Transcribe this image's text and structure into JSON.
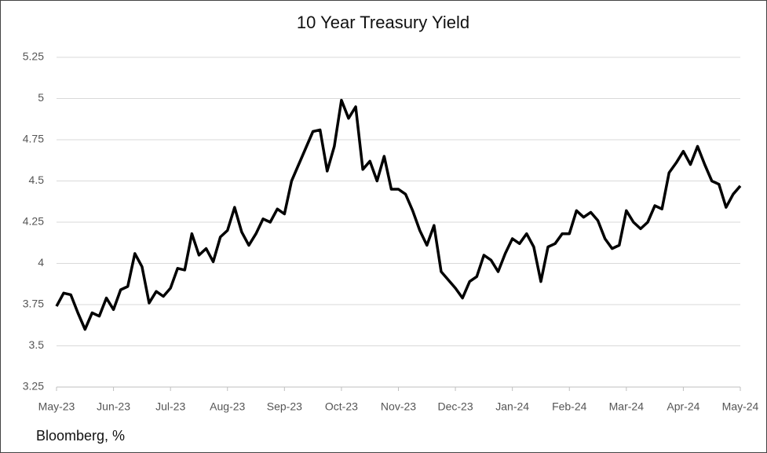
{
  "chart_data": {
    "type": "line",
    "title": "10 Year Treasury Yield",
    "source": "Bloomberg, %",
    "categories": [
      "May-23",
      null,
      null,
      null,
      null,
      null,
      null,
      null,
      "Jun-23",
      null,
      null,
      null,
      null,
      null,
      null,
      null,
      "Jul-23",
      null,
      null,
      null,
      null,
      null,
      null,
      null,
      "Aug-23",
      null,
      null,
      null,
      null,
      null,
      null,
      null,
      "Sep-23",
      null,
      null,
      null,
      null,
      null,
      null,
      null,
      "Oct-23",
      null,
      null,
      null,
      null,
      null,
      null,
      null,
      "Nov-23",
      null,
      null,
      null,
      null,
      null,
      null,
      null,
      "Dec-23",
      null,
      null,
      null,
      null,
      null,
      null,
      null,
      "Jan-24",
      null,
      null,
      null,
      null,
      null,
      null,
      null,
      "Feb-24",
      null,
      null,
      null,
      null,
      null,
      null,
      null,
      "Mar-24",
      null,
      null,
      null,
      null,
      null,
      null,
      null,
      "Apr-24",
      null,
      null,
      null,
      null,
      null,
      null,
      null,
      "May-24"
    ],
    "series": [
      {
        "color": "#000000",
        "values": [
          3.74,
          3.82,
          3.81,
          3.7,
          3.6,
          3.7,
          3.68,
          3.79,
          3.72,
          3.84,
          3.86,
          4.06,
          3.98,
          3.76,
          3.83,
          3.8,
          3.85,
          3.97,
          3.96,
          4.18,
          4.05,
          4.09,
          4.01,
          4.16,
          4.2,
          4.34,
          4.19,
          4.11,
          4.18,
          4.27,
          4.25,
          4.33,
          4.3,
          4.5,
          4.6,
          4.7,
          4.8,
          4.81,
          4.56,
          4.71,
          4.99,
          4.88,
          4.95,
          4.57,
          4.62,
          4.5,
          4.65,
          4.45,
          4.45,
          4.42,
          4.32,
          4.2,
          4.11,
          4.23,
          3.95,
          3.9,
          3.85,
          3.79,
          3.89,
          3.92,
          4.05,
          4.02,
          3.95,
          4.06,
          4.15,
          4.12,
          4.18,
          4.1,
          3.89,
          4.1,
          4.12,
          4.18,
          4.18,
          4.32,
          4.28,
          4.31,
          4.26,
          4.15,
          4.09,
          4.11,
          4.32,
          4.25,
          4.21,
          4.25,
          4.35,
          4.33,
          4.55,
          4.61,
          4.68,
          4.6,
          4.71,
          4.6,
          4.5,
          4.48,
          4.34,
          4.42,
          4.47
        ]
      }
    ],
    "ylim": [
      3.25,
      5.25
    ],
    "yticks": [
      3.25,
      3.5,
      3.75,
      4,
      4.25,
      4.5,
      4.75,
      5,
      5.25
    ],
    "grid": true
  }
}
